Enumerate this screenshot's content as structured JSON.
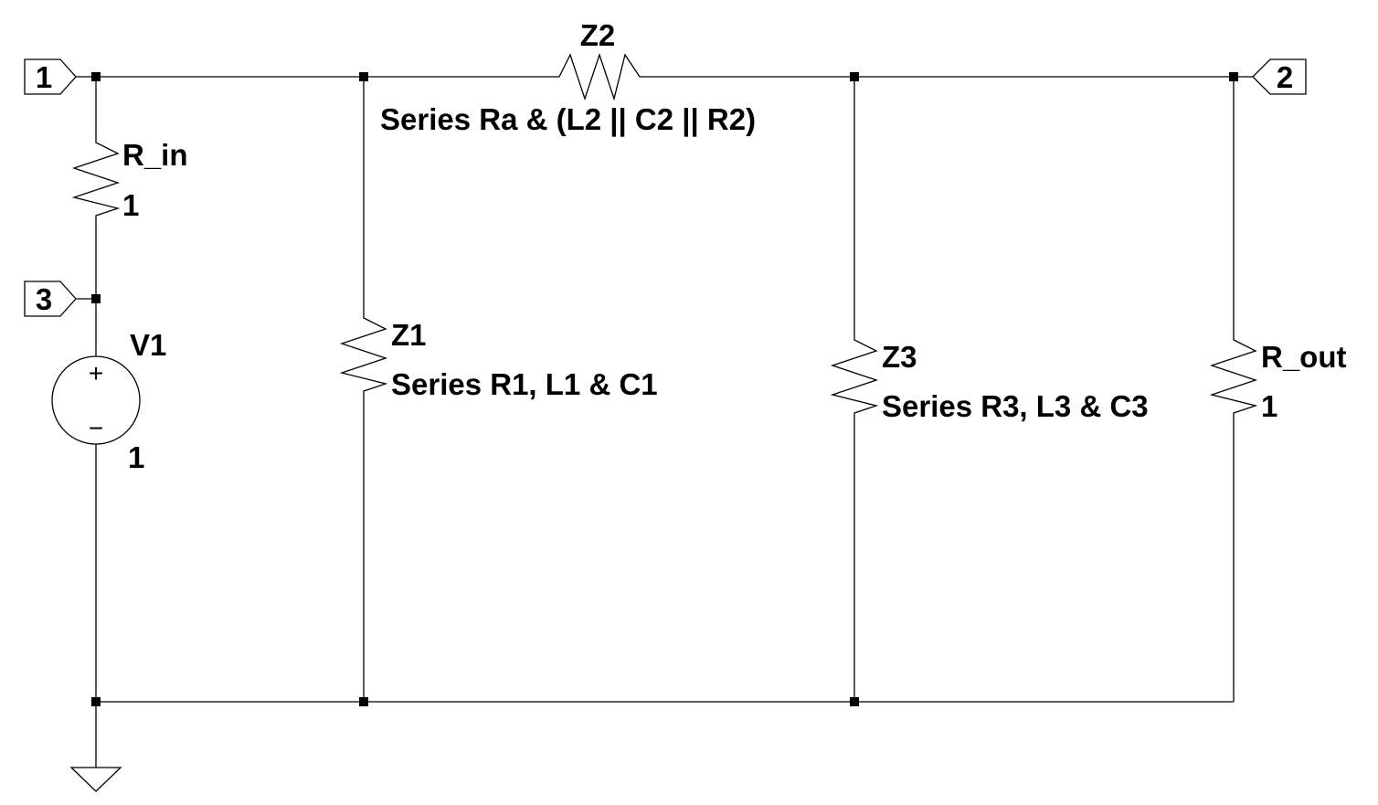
{
  "diagram": {
    "type": "circuit-schematic",
    "colors": {
      "line": "#000000",
      "background": "#ffffff"
    }
  },
  "ports": {
    "p1": "1",
    "p2": "2",
    "p3": "3"
  },
  "components": {
    "r_in": {
      "name": "R_in",
      "value": "1"
    },
    "v1": {
      "name": "V1",
      "value": "1",
      "plus": "+",
      "minus": "−"
    },
    "z1": {
      "name": "Z1",
      "description": "Series R1, L1 & C1"
    },
    "z2": {
      "name": "Z2",
      "description": "Series Ra & (L2 || C2 || R2)"
    },
    "z3": {
      "name": "Z3",
      "description": "Series R3, L3 & C3"
    },
    "r_out": {
      "name": "R_out",
      "value": "1"
    }
  }
}
